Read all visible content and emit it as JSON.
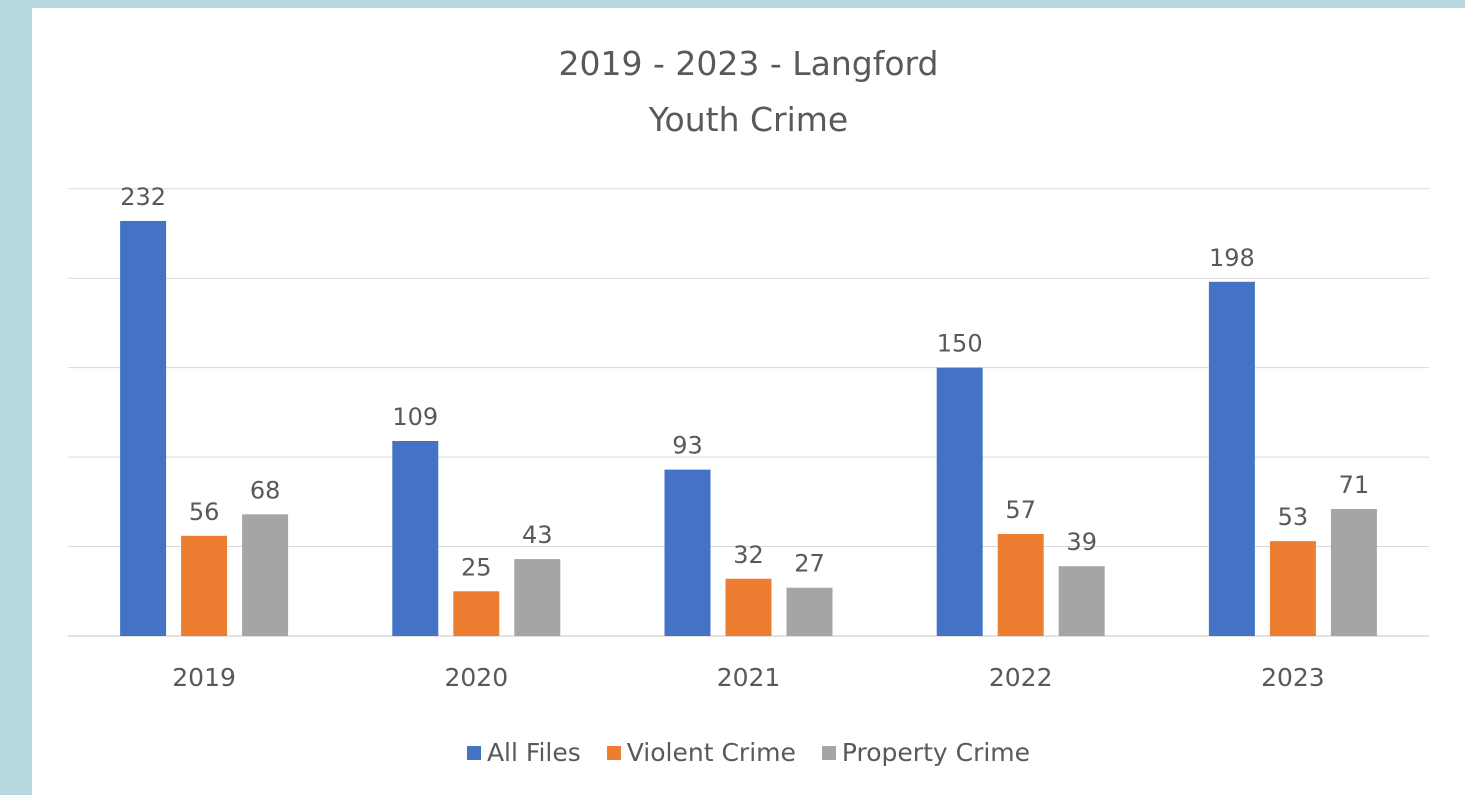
{
  "colors": {
    "all_files": "#4472c4",
    "violent": "#ed7d31",
    "property": "#a5a5a5",
    "gridline": "#d9d9d9",
    "text": "#595959"
  },
  "chart_data": {
    "type": "bar",
    "title": "2019 - 2023 - Langford",
    "subtitle": "Youth Crime",
    "categories": [
      "2019",
      "2020",
      "2021",
      "2022",
      "2023"
    ],
    "series": [
      {
        "name": "All Files",
        "values": [
          232,
          109,
          93,
          150,
          198
        ]
      },
      {
        "name": "Violent Crime",
        "values": [
          56,
          25,
          32,
          57,
          53
        ]
      },
      {
        "name": "Property Crime",
        "values": [
          68,
          43,
          27,
          39,
          71
        ]
      }
    ],
    "xlabel": "",
    "ylabel": "",
    "ylim": [
      0,
      250
    ],
    "y_gridline_step": 50,
    "y_tick_labels_visible": false,
    "gridlines": true,
    "data_labels": true,
    "legend_position": "bottom"
  }
}
